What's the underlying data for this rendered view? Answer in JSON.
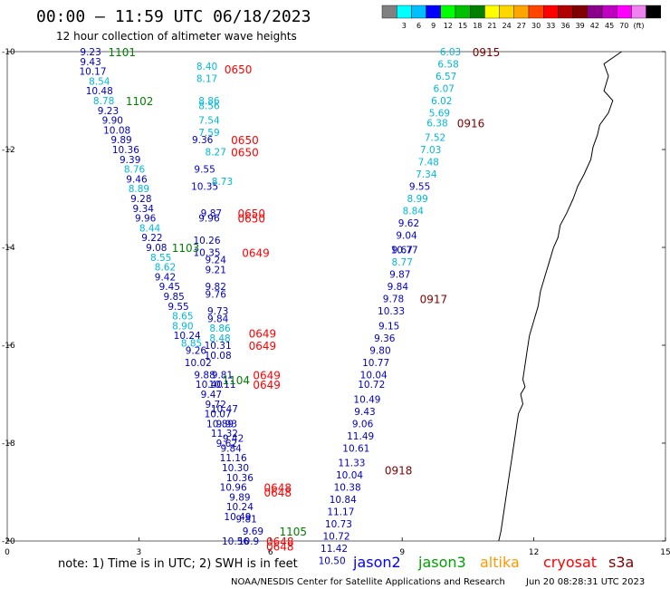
{
  "header": {
    "title": "00:00 — 11:59 UTC 06/18/2023",
    "subtitle": "12 hour collection of altimeter wave heights"
  },
  "colorbar": {
    "colors": [
      "#808080",
      "#00ffff",
      "#00bfff",
      "#0000ff",
      "#00ff00",
      "#00c000",
      "#008000",
      "#ffff00",
      "#ffd700",
      "#ffa500",
      "#ff4500",
      "#ff0000",
      "#b00000",
      "#800000",
      "#8b008b",
      "#c000c0",
      "#ff00ff",
      "#ee82ee",
      "#000000"
    ],
    "labels": [
      "3",
      "6",
      "9",
      "12",
      "15",
      "18",
      "21",
      "24",
      "27",
      "30",
      "33",
      "36",
      "39",
      "42",
      "45",
      "70",
      "(ft)"
    ]
  },
  "axes": {
    "x_ticks": [
      "0",
      "3",
      "6",
      "9",
      "12",
      "15"
    ],
    "y_ticks": [
      "-10",
      "-12",
      "-14",
      "-16",
      "-18",
      "-20"
    ],
    "x_range": [
      0,
      15
    ],
    "y_range": [
      -10,
      -20
    ]
  },
  "coast": [
    [
      14.0,
      -10.0
    ],
    [
      13.6,
      -10.25
    ],
    [
      13.7,
      -10.5
    ],
    [
      13.6,
      -10.8
    ],
    [
      13.8,
      -11.0
    ],
    [
      13.7,
      -11.25
    ],
    [
      13.5,
      -11.5
    ],
    [
      13.45,
      -11.7
    ],
    [
      13.35,
      -11.95
    ],
    [
      13.3,
      -12.2
    ],
    [
      13.15,
      -12.5
    ],
    [
      13.0,
      -12.75
    ],
    [
      12.9,
      -13.0
    ],
    [
      12.75,
      -13.3
    ],
    [
      12.6,
      -13.55
    ],
    [
      12.55,
      -13.8
    ],
    [
      12.45,
      -14.0
    ],
    [
      12.35,
      -14.3
    ],
    [
      12.25,
      -14.6
    ],
    [
      12.15,
      -14.9
    ],
    [
      12.1,
      -15.2
    ],
    [
      12.0,
      -15.5
    ],
    [
      11.9,
      -15.8
    ],
    [
      11.85,
      -16.1
    ],
    [
      11.8,
      -16.4
    ],
    [
      11.75,
      -16.7
    ],
    [
      11.8,
      -16.85
    ],
    [
      11.7,
      -17.0
    ],
    [
      11.75,
      -17.2
    ],
    [
      11.65,
      -17.4
    ],
    [
      11.6,
      -17.7
    ],
    [
      11.55,
      -18.0
    ],
    [
      11.5,
      -18.3
    ],
    [
      11.45,
      -18.6
    ],
    [
      11.4,
      -18.9
    ],
    [
      11.35,
      -19.2
    ],
    [
      11.3,
      -19.5
    ],
    [
      11.25,
      -19.8
    ],
    [
      11.2,
      -20.0
    ]
  ],
  "passes": [
    {
      "color": "#0000c0",
      "points": [
        {
          "x": 1.9,
          "y": -10.0,
          "v": "9.23"
        },
        {
          "x": 1.9,
          "y": -10.2,
          "v": "9.43"
        },
        {
          "x": 1.95,
          "y": -10.4,
          "v": "10.17"
        },
        {
          "x": 2.1,
          "y": -10.8,
          "v": "10.48"
        },
        {
          "x": 2.3,
          "y": -11.2,
          "v": "9.23"
        },
        {
          "x": 2.4,
          "y": -11.4,
          "v": "9.90"
        },
        {
          "x": 2.5,
          "y": -11.6,
          "v": "10.08"
        },
        {
          "x": 2.6,
          "y": -11.8,
          "v": "9.89"
        },
        {
          "x": 2.7,
          "y": -12.0,
          "v": "10.36"
        },
        {
          "x": 2.8,
          "y": -12.2,
          "v": "9.39"
        },
        {
          "x": 2.95,
          "y": -12.6,
          "v": "9.46"
        },
        {
          "x": 3.05,
          "y": -13.0,
          "v": "9.28"
        },
        {
          "x": 3.1,
          "y": -13.2,
          "v": "9.34"
        },
        {
          "x": 3.15,
          "y": -13.4,
          "v": "9.96"
        },
        {
          "x": 3.3,
          "y": -13.8,
          "v": "9.22"
        },
        {
          "x": 3.4,
          "y": -14.0,
          "v": "9.08"
        },
        {
          "x": 3.6,
          "y": -14.6,
          "v": "9.42"
        },
        {
          "x": 3.7,
          "y": -14.8,
          "v": "9.45"
        },
        {
          "x": 3.8,
          "y": -15.0,
          "v": "9.85"
        },
        {
          "x": 3.9,
          "y": -15.2,
          "v": "9.55"
        },
        {
          "x": 4.1,
          "y": -15.8,
          "v": "10.24"
        },
        {
          "x": 4.3,
          "y": -16.1,
          "v": "9.26"
        },
        {
          "x": 4.35,
          "y": -16.35,
          "v": "10.02"
        },
        {
          "x": 4.5,
          "y": -16.6,
          "v": "9.88"
        },
        {
          "x": 4.6,
          "y": -16.8,
          "v": "10.40"
        },
        {
          "x": 4.65,
          "y": -17.0,
          "v": "9.47"
        },
        {
          "x": 4.75,
          "y": -17.2,
          "v": "9.72"
        },
        {
          "x": 4.8,
          "y": -17.4,
          "v": "10.07"
        },
        {
          "x": 4.85,
          "y": -17.6,
          "v": "10.89"
        },
        {
          "x": 4.95,
          "y": -17.8,
          "v": "11.32"
        },
        {
          "x": 5.0,
          "y": -18.0,
          "v": "9.62"
        },
        {
          "x": 5.1,
          "y": -18.1,
          "v": "9.84"
        },
        {
          "x": 5.15,
          "y": -18.3,
          "v": "11.16"
        },
        {
          "x": 5.2,
          "y": -18.5,
          "v": "10.30"
        },
        {
          "x": 5.3,
          "y": -18.7,
          "v": "10.36"
        },
        {
          "x": 5.3,
          "y": -19.3,
          "v": "10.24"
        },
        {
          "x": 5.25,
          "y": -19.5,
          "v": "10.49"
        },
        {
          "x": 5.45,
          "y": -19.55,
          "v": "9.81"
        },
        {
          "x": 5.6,
          "y": -19.8,
          "v": "9.69"
        },
        {
          "x": 5.2,
          "y": -20.0,
          "v": "10.56"
        },
        {
          "x": 5.5,
          "y": -20.0,
          "v": "10.9"
        }
      ]
    },
    {
      "color": "#00b8d8",
      "points": [
        {
          "x": 2.1,
          "y": -10.6,
          "v": "8.54"
        },
        {
          "x": 2.2,
          "y": -11.0,
          "v": "8.78"
        },
        {
          "x": 2.9,
          "y": -12.4,
          "v": "8.76"
        },
        {
          "x": 3.0,
          "y": -12.8,
          "v": "8.89"
        },
        {
          "x": 3.25,
          "y": -13.6,
          "v": "8.44"
        },
        {
          "x": 3.5,
          "y": -14.2,
          "v": "8.55"
        },
        {
          "x": 3.6,
          "y": -14.4,
          "v": "8.62"
        },
        {
          "x": 4.0,
          "y": -15.4,
          "v": "8.65"
        },
        {
          "x": 4.0,
          "y": -15.6,
          "v": "8.90"
        },
        {
          "x": 4.2,
          "y": -15.95,
          "v": "8.85"
        }
      ]
    },
    {
      "color": "#0000c0",
      "points": [
        {
          "x": 4.45,
          "y": -11.8,
          "v": "9.36"
        },
        {
          "x": 4.5,
          "y": -12.4,
          "v": "9.55"
        },
        {
          "x": 4.5,
          "y": -12.75,
          "v": "10.35"
        },
        {
          "x": 4.65,
          "y": -13.3,
          "v": "9.87"
        },
        {
          "x": 4.6,
          "y": -13.4,
          "v": "9.96"
        },
        {
          "x": 4.55,
          "y": -13.85,
          "v": "10.26"
        },
        {
          "x": 4.55,
          "y": -14.1,
          "v": "10.35"
        },
        {
          "x": 4.75,
          "y": -14.25,
          "v": "9.24"
        },
        {
          "x": 4.75,
          "y": -14.45,
          "v": "9.21"
        },
        {
          "x": 4.75,
          "y": -14.8,
          "v": "9.82"
        },
        {
          "x": 4.75,
          "y": -14.95,
          "v": "9.76"
        },
        {
          "x": 4.8,
          "y": -15.3,
          "v": "9.73"
        },
        {
          "x": 4.8,
          "y": -15.45,
          "v": "9.84"
        },
        {
          "x": 4.8,
          "y": -16.0,
          "v": "10.31"
        },
        {
          "x": 4.8,
          "y": -16.2,
          "v": "10.08"
        },
        {
          "x": 4.9,
          "y": -16.6,
          "v": "9.81"
        },
        {
          "x": 4.9,
          "y": -16.8,
          "v": "10.11"
        },
        {
          "x": 4.95,
          "y": -17.3,
          "v": "10.47"
        },
        {
          "x": 5.0,
          "y": -17.6,
          "v": "9.93"
        },
        {
          "x": 5.15,
          "y": -17.9,
          "v": "9.42"
        },
        {
          "x": 5.15,
          "y": -18.9,
          "v": "10.96"
        },
        {
          "x": 5.3,
          "y": -19.1,
          "v": "9.89"
        }
      ]
    },
    {
      "color": "#00b8d8",
      "points": [
        {
          "x": 4.55,
          "y": -10.3,
          "v": "8.40"
        },
        {
          "x": 4.55,
          "y": -10.55,
          "v": "8.17"
        },
        {
          "x": 4.6,
          "y": -11.0,
          "v": "8.86"
        },
        {
          "x": 4.6,
          "y": -11.1,
          "v": "8.56"
        },
        {
          "x": 4.6,
          "y": -11.4,
          "v": "7.54"
        },
        {
          "x": 4.6,
          "y": -11.65,
          "v": "7.59"
        },
        {
          "x": 4.75,
          "y": -12.05,
          "v": "8.27"
        },
        {
          "x": 4.9,
          "y": -12.65,
          "v": "8.73"
        },
        {
          "x": 4.85,
          "y": -15.65,
          "v": "8.86"
        },
        {
          "x": 4.85,
          "y": -15.85,
          "v": "8.48"
        }
      ]
    },
    {
      "color": "#00b8d8",
      "points": [
        {
          "x": 10.1,
          "y": -10.0,
          "v": "6.03"
        },
        {
          "x": 10.05,
          "y": -10.25,
          "v": "6.58"
        },
        {
          "x": 10.0,
          "y": -10.5,
          "v": "6.57"
        },
        {
          "x": 9.95,
          "y": -10.75,
          "v": "6.07"
        },
        {
          "x": 9.9,
          "y": -11.0,
          "v": "6.02"
        },
        {
          "x": 9.85,
          "y": -11.25,
          "v": "5.69"
        },
        {
          "x": 9.8,
          "y": -11.45,
          "v": "6.38"
        },
        {
          "x": 9.75,
          "y": -11.75,
          "v": "7.52"
        },
        {
          "x": 9.65,
          "y": -12.0,
          "v": "7.03"
        },
        {
          "x": 9.6,
          "y": -12.25,
          "v": "7.48"
        },
        {
          "x": 9.55,
          "y": -12.5,
          "v": "7.34"
        },
        {
          "x": 9.35,
          "y": -13.0,
          "v": "8.99"
        },
        {
          "x": 9.25,
          "y": -13.25,
          "v": "8.84"
        },
        {
          "x": 9.0,
          "y": -14.3,
          "v": "8.77"
        }
      ]
    },
    {
      "color": "#0000c0",
      "points": [
        {
          "x": 9.4,
          "y": -12.75,
          "v": "9.55"
        },
        {
          "x": 9.15,
          "y": -13.5,
          "v": "9.62"
        },
        {
          "x": 9.1,
          "y": -13.75,
          "v": "9.04"
        },
        {
          "x": 9.05,
          "y": -14.05,
          "v": "10.77"
        },
        {
          "x": 9.0,
          "y": -14.05,
          "v": "9.67"
        },
        {
          "x": 8.95,
          "y": -14.55,
          "v": "9.87"
        },
        {
          "x": 8.9,
          "y": -14.8,
          "v": "9.84"
        },
        {
          "x": 8.8,
          "y": -15.05,
          "v": "9.78"
        },
        {
          "x": 8.75,
          "y": -15.3,
          "v": "10.33"
        },
        {
          "x": 8.7,
          "y": -15.6,
          "v": "9.15"
        },
        {
          "x": 8.6,
          "y": -15.85,
          "v": "9.36"
        },
        {
          "x": 8.5,
          "y": -16.1,
          "v": "9.80"
        },
        {
          "x": 8.4,
          "y": -16.35,
          "v": "10.77"
        },
        {
          "x": 8.35,
          "y": -16.6,
          "v": "10.04"
        },
        {
          "x": 8.3,
          "y": -16.8,
          "v": "10.72"
        },
        {
          "x": 8.2,
          "y": -17.1,
          "v": "10.49"
        },
        {
          "x": 8.15,
          "y": -17.35,
          "v": "9.43"
        },
        {
          "x": 8.1,
          "y": -17.6,
          "v": "9.06"
        },
        {
          "x": 8.05,
          "y": -17.85,
          "v": "11.49"
        },
        {
          "x": 7.95,
          "y": -18.1,
          "v": "10.61"
        },
        {
          "x": 7.85,
          "y": -18.4,
          "v": "11.33"
        },
        {
          "x": 7.8,
          "y": -18.65,
          "v": "10.04"
        },
        {
          "x": 7.75,
          "y": -18.9,
          "v": "10.38"
        },
        {
          "x": 7.65,
          "y": -19.15,
          "v": "10.84"
        },
        {
          "x": 7.6,
          "y": -19.4,
          "v": "11.17"
        },
        {
          "x": 7.55,
          "y": -19.65,
          "v": "10.73"
        },
        {
          "x": 7.5,
          "y": -19.9,
          "v": "10.72"
        },
        {
          "x": 7.45,
          "y": -20.15,
          "v": "11.42"
        },
        {
          "x": 7.4,
          "y": -20.4,
          "v": "10.50"
        }
      ]
    }
  ],
  "times": [
    {
      "x": 2.3,
      "y": -10.0,
      "t": "1101",
      "color": "#008000"
    },
    {
      "x": 2.7,
      "y": -11.0,
      "t": "1102",
      "color": "#008000"
    },
    {
      "x": 3.75,
      "y": -14.0,
      "t": "1103",
      "color": "#008000"
    },
    {
      "x": 4.9,
      "y": -16.7,
      "t": "1104",
      "color": "#008000"
    },
    {
      "x": 6.2,
      "y": -19.8,
      "t": "1105",
      "color": "#008000"
    },
    {
      "x": 4.95,
      "y": -10.35,
      "t": "0650",
      "color": "#ff0000"
    },
    {
      "x": 5.1,
      "y": -11.8,
      "t": "0650",
      "color": "#ff0000"
    },
    {
      "x": 5.1,
      "y": -12.05,
      "t": "0650",
      "color": "#ff0000"
    },
    {
      "x": 5.25,
      "y": -13.3,
      "t": "0650",
      "color": "#ff0000"
    },
    {
      "x": 5.25,
      "y": -13.4,
      "t": "0650",
      "color": "#ff0000"
    },
    {
      "x": 5.35,
      "y": -14.1,
      "t": "0649",
      "color": "#ff0000"
    },
    {
      "x": 5.5,
      "y": -15.75,
      "t": "0649",
      "color": "#ff0000"
    },
    {
      "x": 5.5,
      "y": -16.0,
      "t": "0649",
      "color": "#ff0000"
    },
    {
      "x": 5.6,
      "y": -16.6,
      "t": "0649",
      "color": "#ff0000"
    },
    {
      "x": 5.6,
      "y": -16.8,
      "t": "0649",
      "color": "#ff0000"
    },
    {
      "x": 5.85,
      "y": -18.9,
      "t": "0648",
      "color": "#ff0000"
    },
    {
      "x": 5.85,
      "y": -19.0,
      "t": "0648",
      "color": "#ff0000"
    },
    {
      "x": 5.9,
      "y": -20.0,
      "t": "0648",
      "color": "#ff0000"
    },
    {
      "x": 5.9,
      "y": -20.1,
      "t": "0648",
      "color": "#ff0000"
    },
    {
      "x": 10.6,
      "y": -10.0,
      "t": "0915",
      "color": "#800000"
    },
    {
      "x": 10.25,
      "y": -11.45,
      "t": "0916",
      "color": "#800000"
    },
    {
      "x": 9.4,
      "y": -15.05,
      "t": "0917",
      "color": "#800000"
    },
    {
      "x": 8.6,
      "y": -18.55,
      "t": "0918",
      "color": "#800000"
    }
  ],
  "footer": {
    "note": "note:  1) Time is in UTC;  2) SWH is in feet",
    "satellites": [
      {
        "name": "jason2",
        "color": "#0000ff"
      },
      {
        "name": "jason3",
        "color": "#00a000"
      },
      {
        "name": "altika",
        "color": "#ff9900"
      },
      {
        "name": "cryosat",
        "color": "#ff0000"
      },
      {
        "name": "s3a",
        "color": "#800000"
      }
    ],
    "credit_left": "NOAA/NESDIS Center for Satellite Applications and Research",
    "credit_right": "Jun 20 08:28:31 UTC 2023"
  }
}
